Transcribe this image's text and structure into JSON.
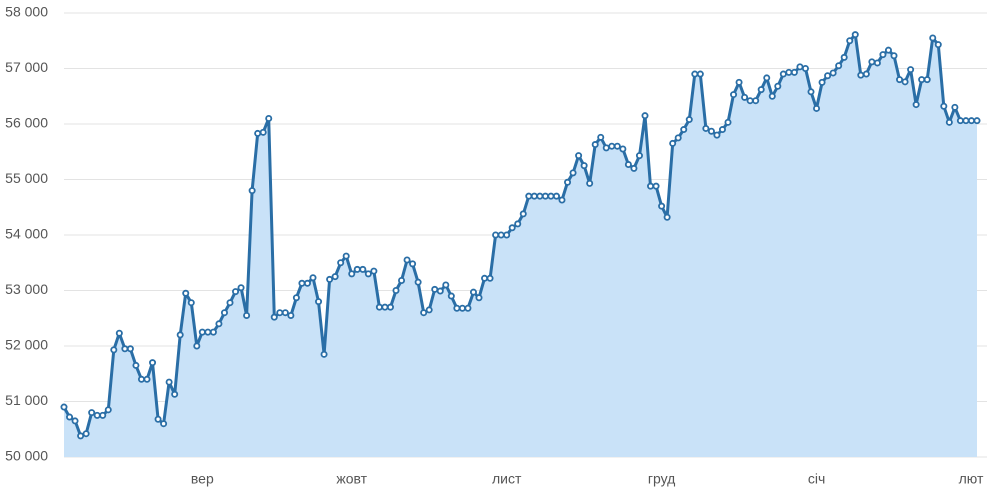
{
  "chart_data": {
    "type": "line",
    "categories": [
      null,
      null,
      null,
      null,
      null,
      null,
      null,
      null,
      null,
      null,
      null,
      null,
      null,
      null,
      null,
      null,
      null,
      null,
      null,
      null,
      null,
      null,
      null,
      null,
      null,
      "вер",
      null,
      null,
      null,
      null,
      null,
      null,
      null,
      null,
      null,
      null,
      null,
      null,
      null,
      null,
      null,
      null,
      null,
      null,
      null,
      null,
      null,
      null,
      null,
      null,
      null,
      null,
      "жовт",
      null,
      null,
      null,
      null,
      null,
      null,
      null,
      null,
      null,
      null,
      null,
      null,
      null,
      null,
      null,
      null,
      null,
      null,
      null,
      null,
      null,
      null,
      null,
      null,
      null,
      null,
      null,
      "лист",
      null,
      null,
      null,
      null,
      null,
      null,
      null,
      null,
      null,
      null,
      null,
      null,
      null,
      null,
      null,
      null,
      null,
      null,
      null,
      null,
      null,
      null,
      null,
      null,
      null,
      null,
      null,
      "груд",
      null,
      null,
      null,
      null,
      null,
      null,
      null,
      null,
      null,
      null,
      null,
      null,
      null,
      null,
      null,
      null,
      null,
      null,
      null,
      null,
      null,
      null,
      null,
      null,
      null,
      null,
      null,
      "січ",
      null,
      null,
      null,
      null,
      null,
      null,
      null,
      null,
      null,
      null,
      null,
      null,
      null,
      null,
      null,
      null,
      null,
      null,
      null,
      null,
      null,
      null,
      null,
      null,
      null,
      null,
      null,
      "лют",
      null
    ],
    "series": [
      {
        "color": "#2a6ea6",
        "area_color": "#c9e2f8",
        "values": [
          50900,
          50720,
          50650,
          50380,
          50420,
          50800,
          50750,
          50750,
          50850,
          51930,
          52230,
          51950,
          51950,
          51650,
          51400,
          51400,
          51700,
          50680,
          50600,
          51350,
          51130,
          52200,
          52950,
          52780,
          52000,
          52250,
          52250,
          52250,
          52400,
          52600,
          52780,
          52980,
          53050,
          52550,
          54800,
          55830,
          55850,
          56100,
          52520,
          52600,
          52600,
          52550,
          52870,
          53130,
          53130,
          53230,
          52800,
          51850,
          53200,
          53250,
          53500,
          53620,
          53300,
          53380,
          53380,
          53300,
          53350,
          52700,
          52700,
          52700,
          53000,
          53180,
          53550,
          53480,
          53150,
          52600,
          52650,
          53020,
          52990,
          53100,
          52900,
          52680,
          52680,
          52680,
          52970,
          52870,
          53220,
          53220,
          54000,
          54000,
          54000,
          54130,
          54200,
          54380,
          54700,
          54700,
          54700,
          54700,
          54700,
          54700,
          54630,
          54950,
          55120,
          55430,
          55250,
          54930,
          55630,
          55760,
          55570,
          55600,
          55600,
          55550,
          55270,
          55200,
          55430,
          56150,
          54880,
          54880,
          54520,
          54320,
          55650,
          55750,
          55900,
          56080,
          56900,
          56900,
          55920,
          55870,
          55800,
          55900,
          56030,
          56530,
          56750,
          56480,
          56420,
          56420,
          56620,
          56830,
          56500,
          56680,
          56900,
          56930,
          56930,
          57030,
          57000,
          56580,
          56280,
          56750,
          56870,
          56920,
          57050,
          57200,
          57500,
          57610,
          56880,
          56900,
          57120,
          57100,
          57250,
          57330,
          57230,
          56800,
          56760,
          56980,
          56350,
          56800,
          56800,
          57550,
          57430,
          56320,
          56030,
          56300,
          56060,
          56060,
          56060,
          56060
        ]
      }
    ],
    "ylim": [
      50000,
      58000
    ],
    "yticks": [
      {
        "value": 50000,
        "label": "50 000"
      },
      {
        "value": 51000,
        "label": "51 000"
      },
      {
        "value": 52000,
        "label": "52 000"
      },
      {
        "value": 53000,
        "label": "53 000"
      },
      {
        "value": 54000,
        "label": "54 000"
      },
      {
        "value": 55000,
        "label": "55 000"
      },
      {
        "value": 56000,
        "label": "56 000"
      },
      {
        "value": 57000,
        "label": "57 000"
      },
      {
        "value": 58000,
        "label": "58 000"
      }
    ],
    "grid": true
  }
}
